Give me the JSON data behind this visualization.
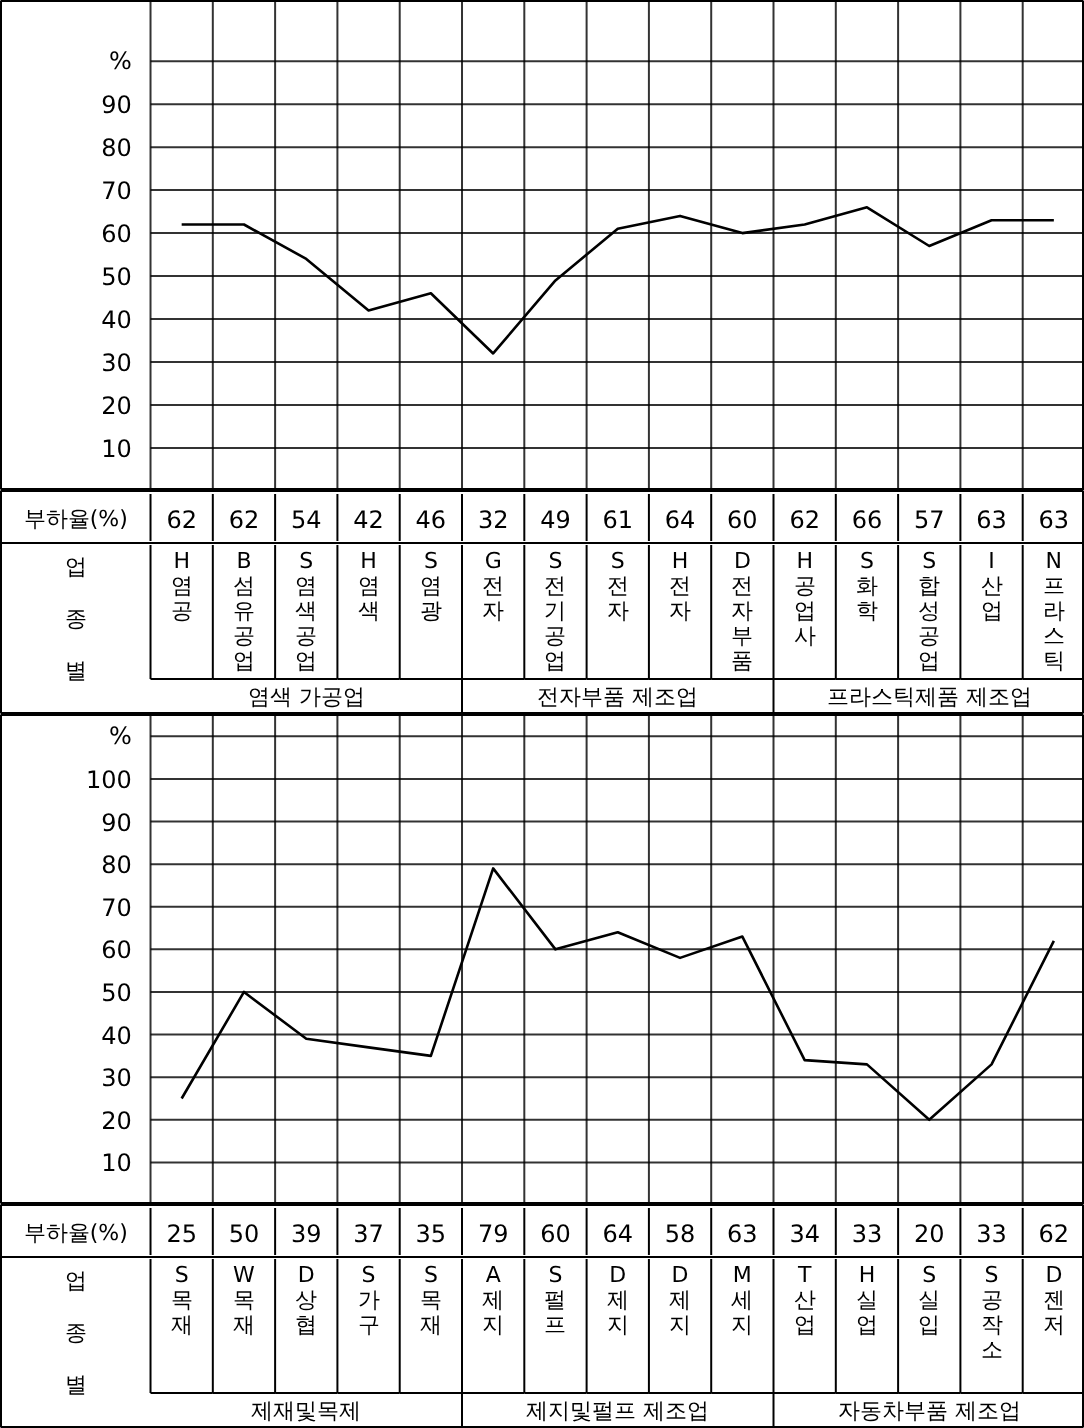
{
  "chart_data": [
    {
      "type": "line",
      "ylabel": "부하율(%)",
      "xlabel": "업종별",
      "categories": [
        "H 염공",
        "B 섬유공업",
        "S 염색공업",
        "H 염색",
        "S 염광",
        "G 전자",
        "S 전기공업",
        "S 전자",
        "H 전자",
        "D 전자부품",
        "H 공업사",
        "S 화학",
        "S 합성공업",
        "I 산업",
        "N 프라스틱"
      ],
      "series": [
        {
          "color": "#000000",
          "values": [
            62,
            62,
            54,
            42,
            46,
            32,
            49,
            61,
            64,
            60,
            62,
            66,
            57,
            63,
            63
          ]
        }
      ],
      "ylim": [
        0,
        114
      ],
      "yticks": [
        10,
        20,
        30,
        40,
        50,
        60,
        70,
        80,
        90,
        {
          "value": 100,
          "label": "%"
        }
      ],
      "grid": true,
      "data_labels": true,
      "annotations": [
        "염색 가공업",
        "전자부품 제조업",
        "프라스틱제품 제조업"
      ]
    },
    {
      "type": "line",
      "ylabel": "부하율(%)",
      "xlabel": "업종별",
      "categories": [
        "S 목재",
        "W 목재",
        "D 상협",
        "S 가구",
        "S 목재",
        "A 제지",
        "S 펄프",
        "D 제지",
        "D 제지",
        "M 세지",
        "T 산업",
        "H 실업",
        "S 실입",
        "S 공작소",
        "D 젠저"
      ],
      "series": [
        {
          "color": "#000000",
          "values": [
            25,
            50,
            39,
            37,
            35,
            79,
            60,
            64,
            58,
            63,
            34,
            33,
            20,
            33,
            62
          ]
        }
      ],
      "ylim": [
        0,
        115
      ],
      "yticks": [
        10,
        20,
        30,
        40,
        50,
        60,
        70,
        80,
        90,
        100,
        {
          "value": 110,
          "label": "%"
        }
      ],
      "grid": true,
      "data_labels": true,
      "annotations": [
        "제재및목제",
        "제지및펄프 제조업",
        "자동차부품 제조업"
      ]
    }
  ]
}
